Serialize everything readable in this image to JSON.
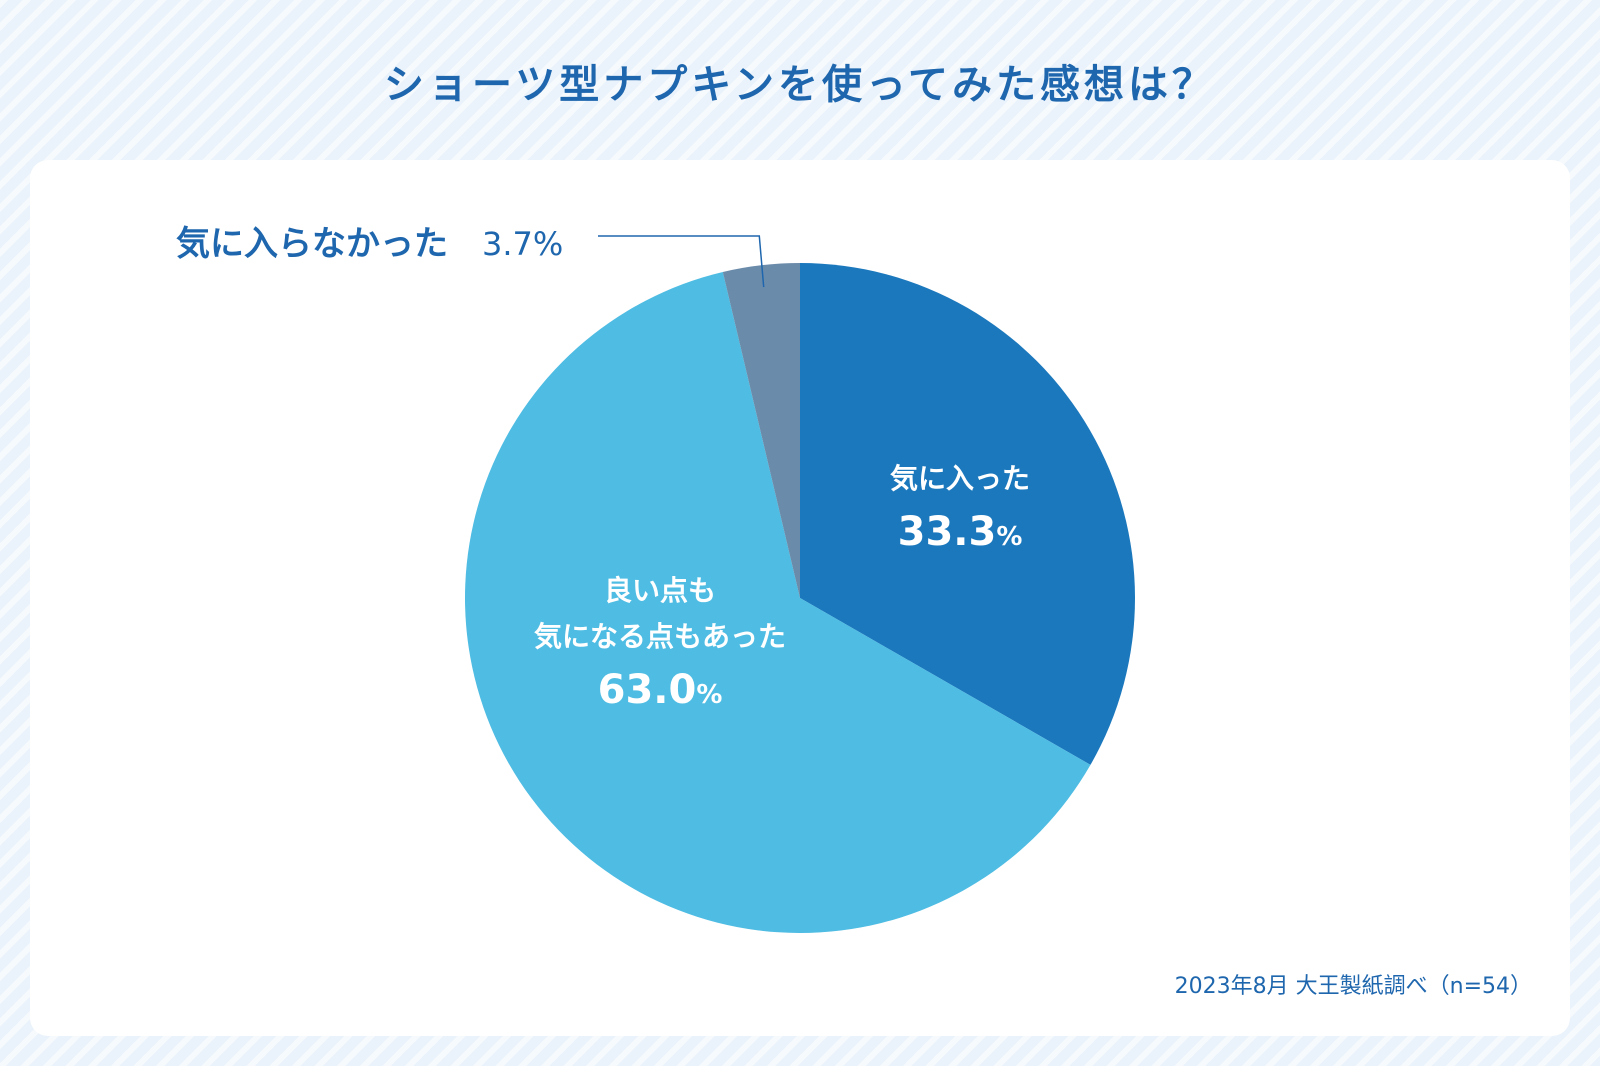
{
  "title": "ショーツ型ナプキンを使ってみた感想は？",
  "chart_data": {
    "type": "pie",
    "title": "ショーツ型ナプキンを使ってみた感想は？",
    "slices": [
      {
        "label": "気に入った",
        "label_lines": [
          "気に入った"
        ],
        "value": 33.3,
        "value_text": "33.3",
        "unit": "%",
        "color": "#1b78bd"
      },
      {
        "label": "良い点も気になる点もあった",
        "label_lines": [
          "良い点も",
          "気になる点もあった"
        ],
        "value": 63.0,
        "value_text": "63.0",
        "unit": "%",
        "color": "#4ebce3"
      },
      {
        "label": "気に入らなかった",
        "label_lines": [
          "気に入らなかった"
        ],
        "value": 3.7,
        "value_text": "3.7%",
        "unit": "%",
        "color": "#6b8bab"
      }
    ],
    "start": "12 o'clock",
    "direction": "clockwise",
    "legend": "none"
  },
  "source": "2023年8月 大王製紙調べ（n=54）",
  "colors": {
    "title": "#1e66ad",
    "background": "#eaf3fb",
    "card": "#ffffff",
    "leader_line": "#1e66ad"
  }
}
